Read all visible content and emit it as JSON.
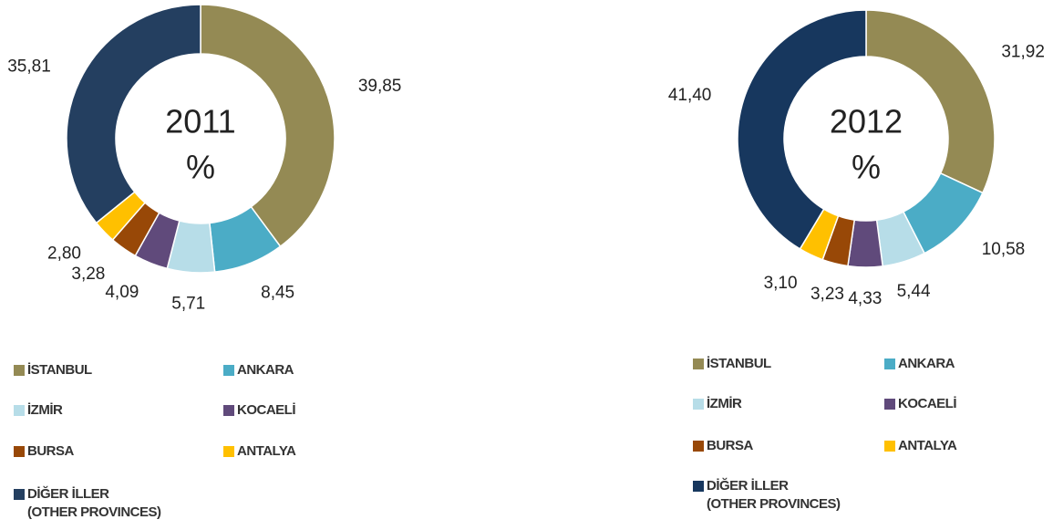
{
  "chart_data": [
    {
      "type": "donut",
      "title": "2011",
      "subtitle": "%",
      "categories": [
        "İSTANBUL",
        "ANKARA",
        "İZMİR",
        "KOCAELİ",
        "BURSA",
        "ANTALYA",
        "DİĞER İLLER\n(OTHER PROVINCES)"
      ],
      "values": [
        39.85,
        8.45,
        5.71,
        4.09,
        3.28,
        2.8,
        35.81
      ],
      "value_labels": [
        "39,85",
        "8,45",
        "5,71",
        "4,09",
        "3,28",
        "2,80",
        "35,81"
      ],
      "colors": [
        "#948a54",
        "#4bacc6",
        "#b7dde8",
        "#604a7b",
        "#984807",
        "#ffc000",
        "#243f60"
      ]
    },
    {
      "type": "donut",
      "title": "2012",
      "subtitle": "%",
      "categories": [
        "İSTANBUL",
        "ANKARA",
        "İZMİR",
        "KOCAELİ",
        "BURSA",
        "ANTALYA",
        "DİĞER İLLER\n(OTHER PROVINCES)"
      ],
      "values": [
        31.92,
        10.58,
        5.44,
        4.33,
        3.23,
        3.1,
        41.4
      ],
      "value_labels": [
        "31,92",
        "10,58",
        "5,44",
        "4,33",
        "3,23",
        "3,10",
        "41,40"
      ],
      "colors": [
        "#948a54",
        "#4bacc6",
        "#b7dde8",
        "#604a7b",
        "#984807",
        "#ffc000",
        "#17375e"
      ]
    }
  ]
}
